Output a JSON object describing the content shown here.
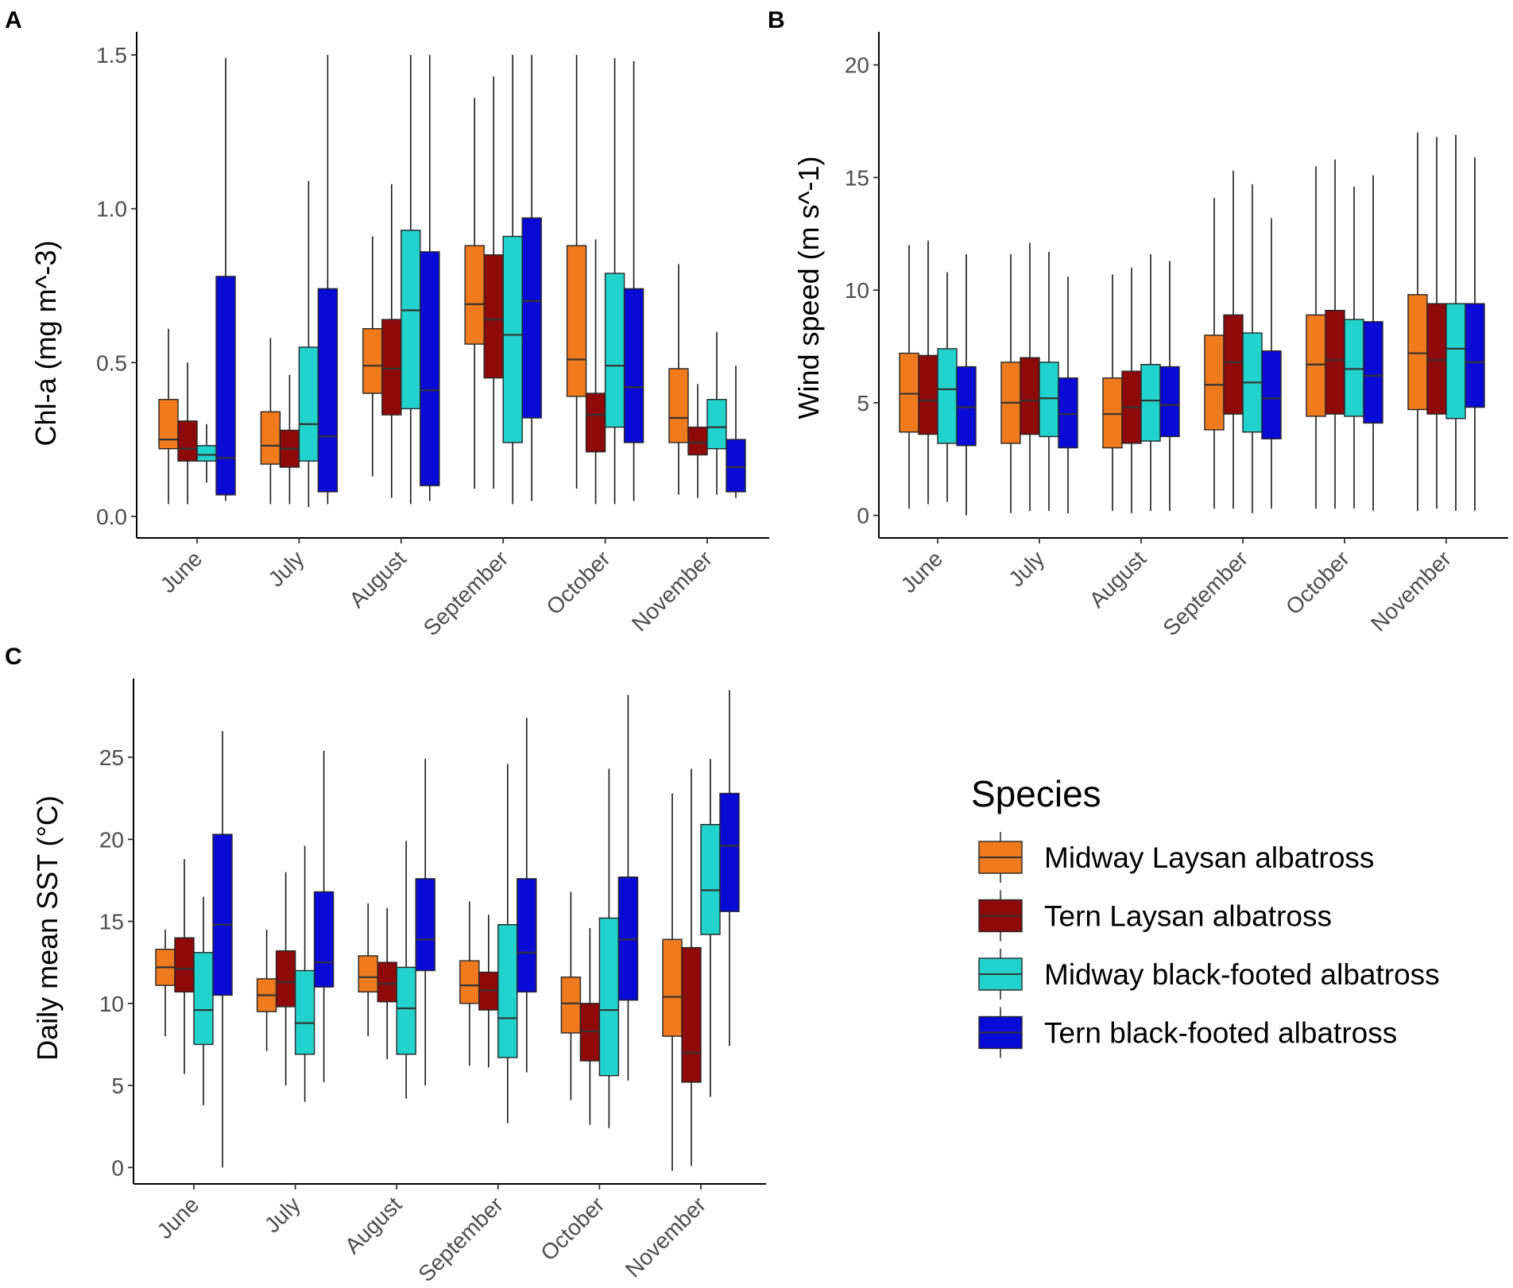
{
  "colors": {
    "midway_laysan": "#F07A1E",
    "tern_laysan": "#8E0A0A",
    "midway_bfal": "#22D2CC",
    "tern_bfal": "#0A0AD6",
    "axis": "#000000",
    "whisker": "#1a1a1a"
  },
  "legend": {
    "title": "Species",
    "items": [
      {
        "label": "Midway Laysan albatross",
        "color": "#F07A1E"
      },
      {
        "label": "Tern Laysan albatross",
        "color": "#8E0A0A"
      },
      {
        "label": "Midway black-footed albatross",
        "color": "#22D2CC"
      },
      {
        "label": "Tern black-footed albatross",
        "color": "#0A0AD6"
      }
    ]
  },
  "chart_data": [
    {
      "panel": "A",
      "type": "boxplot",
      "ylabel": "Chl-a (mg m^-3)",
      "ylim": [
        -0.07,
        1.57
      ],
      "yticks": [
        0.0,
        0.5,
        1.0,
        1.5
      ],
      "ytick_labels": [
        "0.0",
        "0.5",
        "1.0",
        "1.5"
      ],
      "categories": [
        "June",
        "July",
        "August",
        "September",
        "October",
        "November"
      ],
      "series": [
        {
          "name": "Midway Laysan albatross",
          "boxes": [
            [
              0.04,
              0.22,
              0.25,
              0.38,
              0.61
            ],
            [
              0.04,
              0.17,
              0.23,
              0.34,
              0.58
            ],
            [
              0.13,
              0.4,
              0.49,
              0.61,
              0.91
            ],
            [
              0.09,
              0.56,
              0.69,
              0.88,
              1.36
            ],
            [
              0.09,
              0.39,
              0.51,
              0.88,
              1.5
            ],
            [
              0.07,
              0.24,
              0.32,
              0.48,
              0.82
            ]
          ]
        },
        {
          "name": "Tern Laysan albatross",
          "boxes": [
            [
              0.04,
              0.18,
              0.22,
              0.31,
              0.5
            ],
            [
              0.04,
              0.16,
              0.22,
              0.28,
              0.46
            ],
            [
              0.06,
              0.33,
              0.48,
              0.64,
              1.08
            ],
            [
              0.09,
              0.45,
              0.64,
              0.85,
              1.43
            ],
            [
              0.04,
              0.21,
              0.33,
              0.4,
              0.9
            ],
            [
              0.06,
              0.2,
              0.24,
              0.29,
              0.43
            ]
          ]
        },
        {
          "name": "Midway black-footed albatross",
          "boxes": [
            [
              0.11,
              0.18,
              0.2,
              0.23,
              0.3
            ],
            [
              0.03,
              0.18,
              0.3,
              0.55,
              1.09
            ],
            [
              0.04,
              0.35,
              0.67,
              0.93,
              1.5
            ],
            [
              0.04,
              0.24,
              0.59,
              0.91,
              1.5
            ],
            [
              0.04,
              0.29,
              0.49,
              0.79,
              1.49
            ],
            [
              0.07,
              0.22,
              0.29,
              0.38,
              0.6
            ]
          ]
        },
        {
          "name": "Tern black-footed albatross",
          "boxes": [
            [
              0.05,
              0.07,
              0.19,
              0.78,
              1.49
            ],
            [
              0.04,
              0.08,
              0.26,
              0.74,
              1.5
            ],
            [
              0.05,
              0.1,
              0.41,
              0.86,
              1.5
            ],
            [
              0.05,
              0.32,
              0.7,
              0.97,
              1.5
            ],
            [
              0.05,
              0.24,
              0.42,
              0.74,
              1.48
            ],
            [
              0.06,
              0.08,
              0.16,
              0.25,
              0.49
            ]
          ]
        }
      ]
    },
    {
      "panel": "B",
      "type": "boxplot",
      "ylabel": "Wind speed (m s^-1)",
      "ylim": [
        -1.0,
        21.4
      ],
      "yticks": [
        0,
        5,
        10,
        15,
        20
      ],
      "ytick_labels": [
        "0",
        "5",
        "10",
        "15",
        "20"
      ],
      "categories": [
        "June",
        "July",
        "August",
        "September",
        "October",
        "November"
      ],
      "series": [
        {
          "name": "Midway Laysan albatross",
          "boxes": [
            [
              0.3,
              3.7,
              5.4,
              7.2,
              12.0
            ],
            [
              0.1,
              3.2,
              5.0,
              6.8,
              11.6
            ],
            [
              0.2,
              3.0,
              4.5,
              6.1,
              10.7
            ],
            [
              0.3,
              3.8,
              5.8,
              8.0,
              14.1
            ],
            [
              0.3,
              4.4,
              6.7,
              8.9,
              15.5
            ],
            [
              0.2,
              4.7,
              7.2,
              9.8,
              17.0
            ]
          ]
        },
        {
          "name": "Tern Laysan albatross",
          "boxes": [
            [
              0.5,
              3.6,
              5.1,
              7.1,
              12.2
            ],
            [
              0.2,
              3.6,
              5.1,
              7.0,
              12.1
            ],
            [
              0.1,
              3.2,
              4.8,
              6.4,
              11.0
            ],
            [
              0.3,
              4.5,
              6.8,
              8.9,
              15.3
            ],
            [
              0.3,
              4.5,
              6.9,
              9.1,
              15.8
            ],
            [
              0.3,
              4.5,
              6.9,
              9.4,
              16.8
            ]
          ]
        },
        {
          "name": "Midway black-footed albatross",
          "boxes": [
            [
              0.6,
              3.2,
              5.6,
              7.4,
              10.8
            ],
            [
              0.2,
              3.5,
              5.2,
              6.8,
              11.7
            ],
            [
              0.2,
              3.3,
              5.1,
              6.7,
              11.6
            ],
            [
              0.1,
              3.7,
              5.9,
              8.1,
              14.7
            ],
            [
              0.3,
              4.4,
              6.5,
              8.7,
              14.6
            ],
            [
              0.2,
              4.3,
              7.4,
              9.4,
              16.9
            ]
          ]
        },
        {
          "name": "Tern black-footed albatross",
          "boxes": [
            [
              0.0,
              3.1,
              4.8,
              6.6,
              11.6
            ],
            [
              0.1,
              3.0,
              4.5,
              6.1,
              10.6
            ],
            [
              0.2,
              3.5,
              4.9,
              6.6,
              11.3
            ],
            [
              0.3,
              3.4,
              5.2,
              7.3,
              13.2
            ],
            [
              0.2,
              4.1,
              6.2,
              8.6,
              15.1
            ],
            [
              0.2,
              4.8,
              6.8,
              9.4,
              15.9
            ]
          ]
        }
      ]
    },
    {
      "panel": "C",
      "type": "boxplot",
      "ylabel": "Daily mean SST (°C)",
      "ylim": [
        -1.0,
        29.7
      ],
      "yticks": [
        0,
        5,
        10,
        15,
        20,
        25
      ],
      "ytick_labels": [
        "0",
        "5",
        "10",
        "15",
        "20",
        "25"
      ],
      "categories": [
        "June",
        "July",
        "August",
        "September",
        "October",
        "November"
      ],
      "series": [
        {
          "name": "Midway Laysan albatross",
          "boxes": [
            [
              8.0,
              11.1,
              12.2,
              13.3,
              14.5
            ],
            [
              7.1,
              9.5,
              10.5,
              11.5,
              14.5
            ],
            [
              8.0,
              10.7,
              11.6,
              12.9,
              16.1
            ],
            [
              6.2,
              10.0,
              11.1,
              12.6,
              16.2
            ],
            [
              4.1,
              8.2,
              10.0,
              11.6,
              16.8
            ],
            [
              -0.2,
              8.0,
              10.4,
              13.9,
              22.8
            ]
          ]
        },
        {
          "name": "Tern Laysan albatross",
          "boxes": [
            [
              5.7,
              10.7,
              12.1,
              14.0,
              18.8
            ],
            [
              5.0,
              9.8,
              11.3,
              13.2,
              18.0
            ],
            [
              6.6,
              10.1,
              11.2,
              12.5,
              15.8
            ],
            [
              6.1,
              9.6,
              10.8,
              11.9,
              15.4
            ],
            [
              2.6,
              6.5,
              8.3,
              10.0,
              14.6
            ],
            [
              0.1,
              5.2,
              7.0,
              13.4,
              24.3
            ]
          ]
        },
        {
          "name": "Midway black-footed albatross",
          "boxes": [
            [
              3.8,
              7.5,
              9.6,
              13.1,
              16.5
            ],
            [
              4.0,
              6.9,
              8.8,
              12.0,
              19.6
            ],
            [
              4.2,
              6.9,
              9.7,
              12.2,
              19.9
            ],
            [
              2.7,
              6.7,
              9.1,
              14.8,
              24.6
            ],
            [
              2.4,
              5.6,
              9.6,
              15.2,
              24.3
            ],
            [
              4.3,
              14.2,
              16.9,
              20.9,
              24.9
            ]
          ]
        },
        {
          "name": "Tern black-footed albatross",
          "boxes": [
            [
              0.0,
              10.5,
              14.8,
              20.3,
              26.6
            ],
            [
              5.2,
              11.0,
              12.5,
              16.8,
              25.4
            ],
            [
              5.0,
              12.0,
              13.9,
              17.6,
              24.9
            ],
            [
              5.8,
              10.7,
              13.1,
              17.6,
              27.4
            ],
            [
              5.3,
              10.2,
              13.9,
              17.7,
              28.8
            ],
            [
              7.4,
              15.6,
              19.6,
              22.8,
              29.1
            ]
          ]
        }
      ]
    }
  ]
}
